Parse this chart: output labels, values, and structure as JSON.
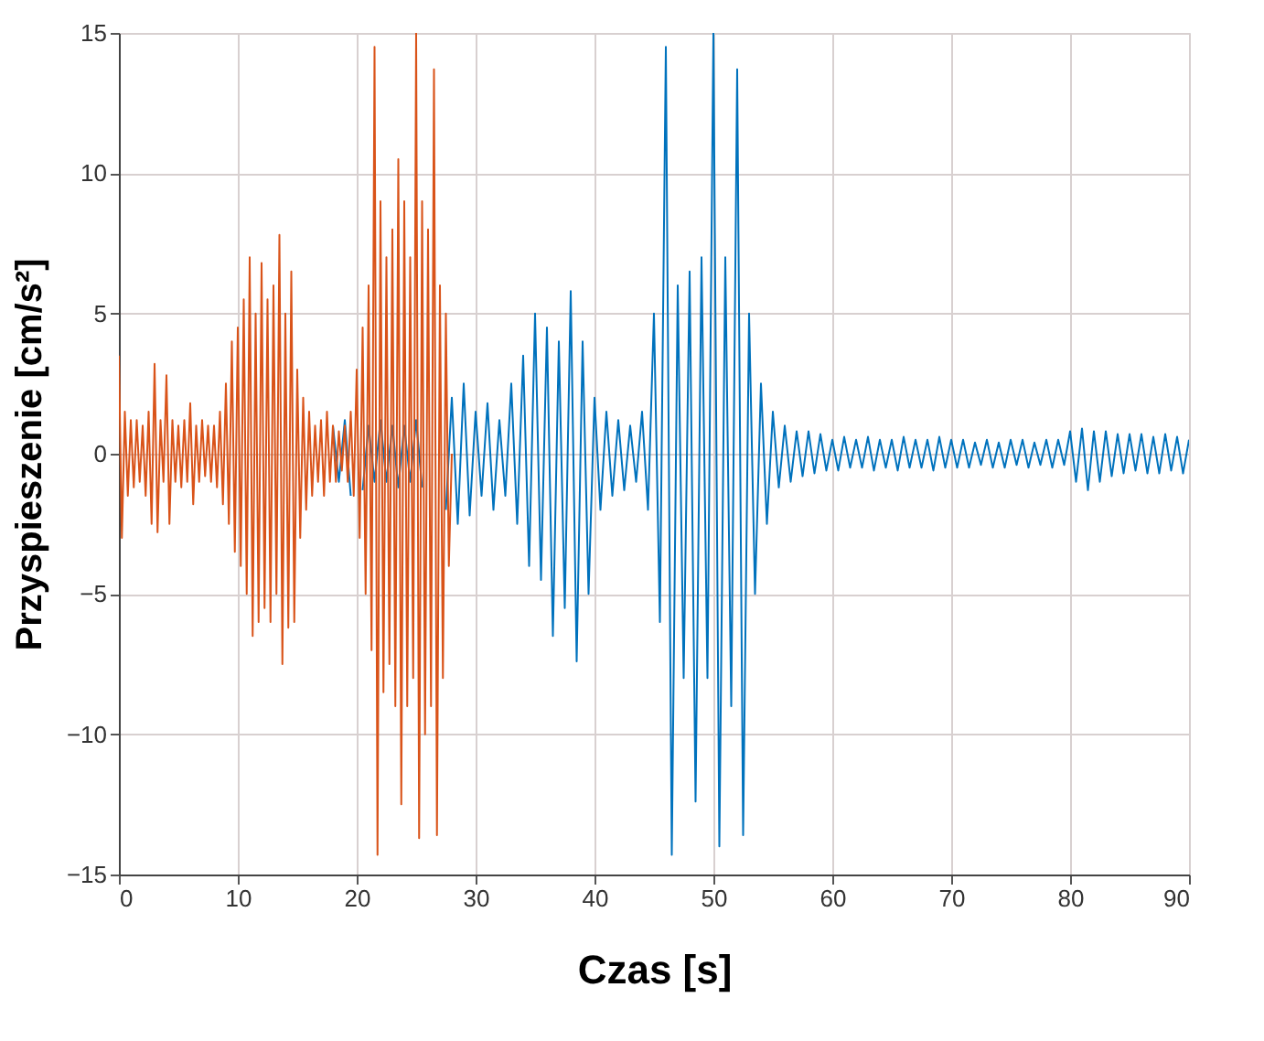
{
  "chart_data": {
    "type": "line",
    "xlabel": "Czas [s]",
    "ylabel": "Przyspieszenie [cm/s²]",
    "xlim": [
      0,
      90
    ],
    "xticks": [
      0,
      10,
      20,
      30,
      40,
      50,
      60,
      70,
      80,
      90
    ],
    "ylim": [
      -15,
      15
    ],
    "yticks": [
      -15,
      -10,
      -5,
      0,
      5,
      10,
      15
    ],
    "grid": true,
    "line_style": "solid",
    "marker": "none",
    "series": [
      {
        "color": "#0072bd",
        "x": [
          18,
          18.5,
          19,
          19.5,
          20,
          20.5,
          21,
          21.5,
          22,
          22.5,
          23,
          23.5,
          24,
          24.5,
          25,
          25.5,
          26,
          26.5,
          27,
          27.5,
          28,
          28.5,
          29,
          29.5,
          30,
          30.5,
          31,
          31.5,
          32,
          32.5,
          33,
          33.5,
          34,
          34.5,
          35,
          35.5,
          36,
          36.5,
          37,
          37.5,
          38,
          38.5,
          39,
          39.5,
          40,
          40.5,
          41,
          41.5,
          42,
          42.5,
          43,
          43.5,
          44,
          44.5,
          45,
          45.5,
          46,
          46.5,
          47,
          47.5,
          48,
          48.5,
          49,
          49.5,
          50,
          50.5,
          51,
          51.5,
          52,
          52.5,
          53,
          53.5,
          54,
          54.5,
          55,
          55.5,
          56,
          56.5,
          57,
          57.5,
          58,
          58.5,
          59,
          59.5,
          60,
          60.5,
          61,
          61.5,
          62,
          62.5,
          63,
          63.5,
          64,
          64.5,
          65,
          65.5,
          66,
          66.5,
          67,
          67.5,
          68,
          68.5,
          69,
          69.5,
          70,
          70.5,
          71,
          71.5,
          72,
          72.5,
          73,
          73.5,
          74,
          74.5,
          75,
          75.5,
          76,
          76.5,
          77,
          77.5,
          78,
          78.5,
          79,
          79.5,
          80,
          80.5,
          81,
          81.5,
          82,
          82.5,
          83,
          83.5,
          84,
          84.5,
          85,
          85.5,
          86,
          86.5,
          87,
          87.5,
          88,
          88.5,
          89,
          89.5,
          90
        ],
        "values": [
          1,
          -1,
          1.2,
          -1.5,
          null,
          -1.3,
          1,
          -1,
          1.2,
          -1,
          1,
          -1.2,
          1,
          -1,
          1.2,
          -1.2,
          null,
          null,
          null,
          -2,
          2,
          -2.5,
          2.5,
          -2.2,
          1.5,
          -1.5,
          1.8,
          -2,
          1.2,
          -1.5,
          2.5,
          -2.5,
          3.5,
          -4,
          5,
          -4.5,
          4.5,
          -6.5,
          4,
          -5.5,
          5.8,
          -7.4,
          4,
          -5,
          2,
          -2,
          1.5,
          -1.5,
          1.2,
          -1.3,
          1,
          -1,
          1.5,
          -2,
          5,
          -6,
          14.5,
          -14.3,
          6,
          -8,
          6.5,
          -12.4,
          7,
          -8,
          15,
          -14,
          7,
          -9,
          13.7,
          -13.6,
          5,
          -5,
          2.5,
          -2.5,
          1.5,
          -1.2,
          1,
          -1,
          0.8,
          -0.8,
          0.8,
          -0.7,
          0.7,
          -0.6,
          0.5,
          -0.6,
          0.6,
          -0.5,
          0.5,
          -0.5,
          0.6,
          -0.6,
          0.5,
          -0.5,
          0.5,
          -0.6,
          0.6,
          -0.5,
          0.5,
          -0.5,
          0.5,
          -0.6,
          0.6,
          -0.5,
          0.5,
          -0.5,
          0.5,
          -0.5,
          0.4,
          -0.4,
          0.5,
          -0.5,
          0.4,
          -0.5,
          0.5,
          -0.4,
          0.5,
          -0.5,
          0.4,
          -0.4,
          0.5,
          -0.5,
          0.5,
          -0.4,
          0.8,
          -1,
          0.9,
          -1.3,
          0.8,
          -1,
          0.8,
          -0.8,
          0.7,
          -0.7,
          0.7,
          -0.6,
          0.7,
          -0.7,
          0.6,
          -0.7,
          0.7,
          -0.6,
          0.6,
          -0.7,
          0.5
        ]
      },
      {
        "color": "#d95319",
        "x": [
          0,
          0.25,
          0.5,
          0.75,
          1,
          1.25,
          1.5,
          1.75,
          2,
          2.25,
          2.5,
          2.75,
          3,
          3.25,
          3.5,
          3.75,
          4,
          4.25,
          4.5,
          4.75,
          5,
          5.25,
          5.5,
          5.75,
          6,
          6.25,
          6.5,
          6.75,
          7,
          7.25,
          7.5,
          7.75,
          8,
          8.25,
          8.5,
          8.75,
          9,
          9.25,
          9.5,
          9.75,
          10,
          10.25,
          10.5,
          10.75,
          11,
          11.25,
          11.5,
          11.75,
          12,
          12.25,
          12.5,
          12.75,
          13,
          13.25,
          13.5,
          13.75,
          14,
          14.25,
          14.5,
          14.75,
          15,
          15.25,
          15.5,
          15.75,
          16,
          16.25,
          16.5,
          16.75,
          17,
          17.25,
          17.5,
          17.75,
          18,
          18.25,
          18.5,
          18.75,
          19,
          19.25,
          19.5,
          19.75,
          20,
          20.25,
          20.5,
          20.75,
          21,
          21.25,
          21.5,
          21.75,
          22,
          22.25,
          22.5,
          22.75,
          23,
          23.25,
          23.5,
          23.75,
          24,
          24.25,
          24.5,
          24.75,
          25,
          25.25,
          25.5,
          25.75,
          26,
          26.25,
          26.5,
          26.75,
          27,
          27.25,
          27.5,
          27.75,
          28
        ],
        "values": [
          3.5,
          -3,
          1.5,
          -1.5,
          1.2,
          -1.2,
          1.2,
          -1,
          1,
          -1.5,
          1.5,
          -2.5,
          3.2,
          -2.8,
          1.2,
          -1,
          2.8,
          -2.5,
          1.2,
          -1,
          1,
          -1.2,
          1.2,
          -1,
          1.8,
          -1.8,
          1,
          -1,
          1.2,
          -0.8,
          1,
          -1,
          1,
          -1.2,
          1.5,
          -1.8,
          2.5,
          -2.5,
          4,
          -3.5,
          4.5,
          -4,
          5.5,
          -5,
          7,
          -6.5,
          5,
          -6,
          6.8,
          -5.5,
          5.5,
          -6,
          6,
          -5,
          7.8,
          -7.5,
          5,
          -6.2,
          6.5,
          -6,
          3,
          -3,
          2,
          -2,
          1.5,
          -1.5,
          1,
          -1,
          1.2,
          -1.5,
          1.5,
          -1,
          1,
          -1,
          0.8,
          -0.6,
          1,
          -1,
          1.5,
          -1.5,
          3,
          -3,
          4.5,
          -5,
          6,
          -7,
          14.5,
          -14.3,
          9,
          -8.5,
          7,
          -7.5,
          8,
          -9,
          10.5,
          -12.5,
          9,
          -9,
          7,
          -8,
          15,
          -13.7,
          9,
          -10,
          8,
          -9,
          13.7,
          -13.6,
          6,
          -8,
          5,
          -4,
          0
        ]
      }
    ]
  }
}
